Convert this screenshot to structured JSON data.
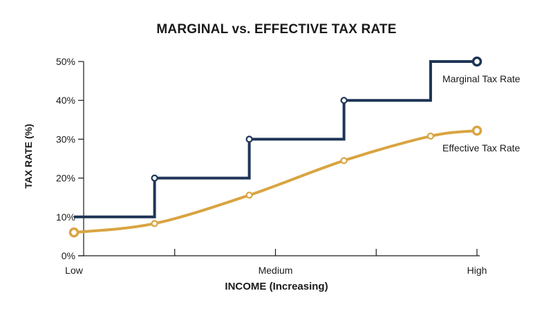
{
  "chart_data": {
    "type": "line",
    "title": "MARGINAL vs. EFFECTIVE TAX RATE",
    "xlabel": "INCOME (Increasing)",
    "ylabel": "TAX RATE (%)",
    "xlim": [
      0,
      1
    ],
    "ylim": [
      0,
      50
    ],
    "x_tick_labels": [
      {
        "value": 0,
        "label": "Low"
      },
      {
        "value": 0.5,
        "label": "Medium"
      },
      {
        "value": 1,
        "label": "High"
      }
    ],
    "x_minor_ticks": [
      0.25,
      0.5,
      0.75,
      1
    ],
    "y_ticks": [
      {
        "value": 0,
        "label": "0%"
      },
      {
        "value": 10,
        "label": "10%"
      },
      {
        "value": 20,
        "label": "20%"
      },
      {
        "value": 30,
        "label": "30%"
      },
      {
        "value": 40,
        "label": "40%"
      },
      {
        "value": 50,
        "label": "50%"
      }
    ],
    "grid": false,
    "series": [
      {
        "name": "Marginal Tax Rate",
        "style": "step",
        "color": "#1f3557",
        "points": [
          {
            "x": 0,
            "y": 10
          },
          {
            "x": 0.2,
            "y": 20
          },
          {
            "x": 0.435,
            "y": 30
          },
          {
            "x": 0.67,
            "y": 40
          },
          {
            "x": 0.885,
            "y": 50
          },
          {
            "x": 1,
            "y": 50
          }
        ],
        "markers": [
          {
            "x": 0.2,
            "y": 20
          },
          {
            "x": 0.435,
            "y": 30
          },
          {
            "x": 0.67,
            "y": 40
          },
          {
            "x": 1,
            "y": 50,
            "emphasis": true
          }
        ]
      },
      {
        "name": "Effective Tax Rate",
        "style": "smooth",
        "color": "#d9a441",
        "points": [
          {
            "x": 0,
            "y": 6
          },
          {
            "x": 0.2,
            "y": 8.3
          },
          {
            "x": 0.435,
            "y": 15.6
          },
          {
            "x": 0.67,
            "y": 24.5
          },
          {
            "x": 0.885,
            "y": 30.8
          },
          {
            "x": 1,
            "y": 32.2
          }
        ],
        "markers": [
          {
            "x": 0,
            "y": 6,
            "emphasis": true
          },
          {
            "x": 0.2,
            "y": 8.3
          },
          {
            "x": 0.435,
            "y": 15.6
          },
          {
            "x": 0.67,
            "y": 24.5
          },
          {
            "x": 0.885,
            "y": 30.8
          },
          {
            "x": 1,
            "y": 32.2,
            "emphasis": true
          }
        ]
      }
    ]
  }
}
